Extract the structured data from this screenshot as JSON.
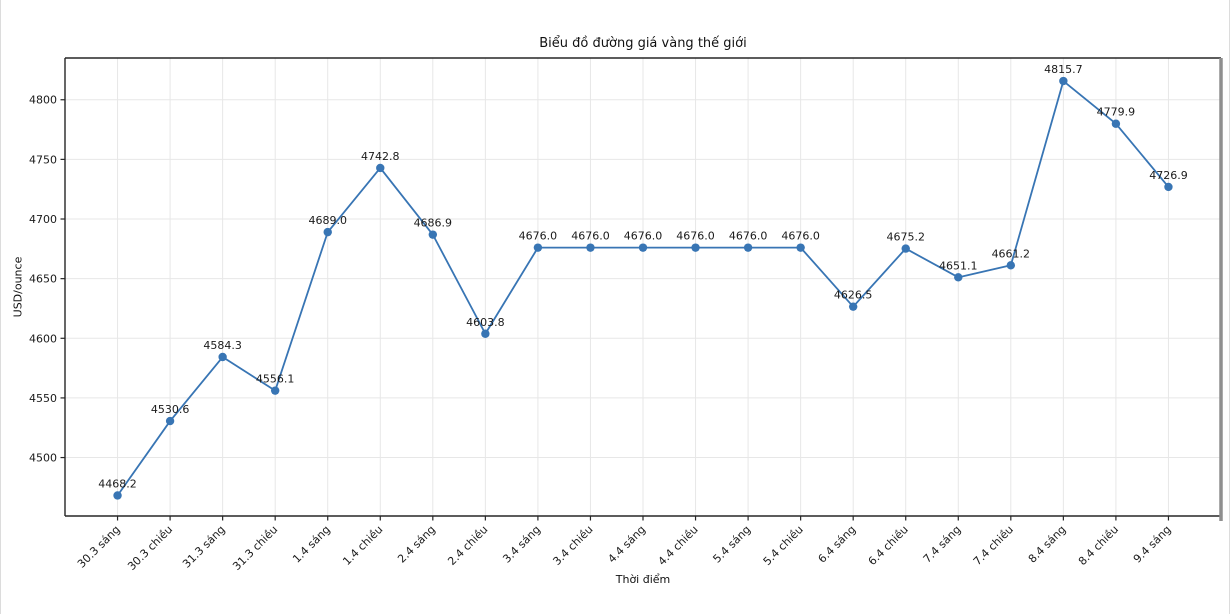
{
  "chart_data": {
    "type": "line",
    "title": "Biểu đồ đường giá vàng thế giới",
    "xlabel": "Thời điểm",
    "ylabel": "USD/ounce",
    "categories": [
      "30.3 sáng",
      "30.3 chiều",
      "31.3 sáng",
      "31.3 chiều",
      "1.4 sáng",
      "1.4 chiều",
      "2.4 sáng",
      "2.4 chiều",
      "3.4 sáng",
      "3.4 chiều",
      "4.4 sáng",
      "4.4 chiều",
      "5.4 sáng",
      "5.4 chiều",
      "6.4 sáng",
      "6.4 chiều",
      "7.4 sáng",
      "7.4 chiều",
      "8.4 sáng",
      "8.4 chiều",
      "9.4 sáng"
    ],
    "values": [
      4468.2,
      4530.6,
      4584.3,
      4556.1,
      4689.0,
      4742.8,
      4686.9,
      4603.8,
      4676.0,
      4676.0,
      4676.0,
      4676.0,
      4676.0,
      4676.0,
      4626.5,
      4675.2,
      4651.1,
      4661.2,
      4815.7,
      4779.9,
      4726.9
    ],
    "point_labels": [
      "4468.2",
      "4530.6",
      "4584.3",
      "4556.1",
      "4689.0",
      "4742.8",
      "4686.9",
      "4603.8",
      "4676.0",
      "4676.0",
      "4676.0",
      "4676.0",
      "4676.0",
      "4676.0",
      "4626.5",
      "4675.2",
      "4651.1",
      "4661.2",
      "4815.7",
      "4779.9",
      "4726.9"
    ],
    "y_ticks": [
      4500,
      4550,
      4600,
      4650,
      4700,
      4750,
      4800
    ],
    "ylim": [
      4451,
      4835
    ],
    "xlim": [
      -1,
      21
    ],
    "grid": true,
    "legend": "none",
    "marker": "circle",
    "line_style": "solid",
    "series_color": "#3875b4",
    "grid_color": "#e7e7e7",
    "spine_color": "#262626",
    "right_edge_color": "#8f8f8f"
  }
}
